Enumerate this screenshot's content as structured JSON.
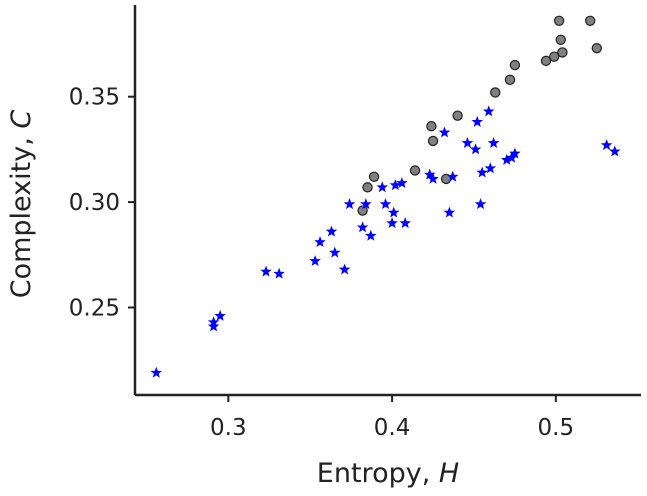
{
  "chart_data": {
    "type": "scatter",
    "xlabel": "Entropy, ",
    "xlabel_var": "H",
    "ylabel": "Complexity, ",
    "ylabel_var": "C",
    "xlim": [
      0.243,
      0.552
    ],
    "ylim": [
      0.2085,
      0.3935
    ],
    "xticks": [
      0.3,
      0.4,
      0.5
    ],
    "xtick_labels": [
      "0.3",
      "0.4",
      "0.5"
    ],
    "yticks": [
      0.25,
      0.3,
      0.35
    ],
    "ytick_labels": [
      "0.25",
      "0.30",
      "0.35"
    ],
    "grid": false,
    "series": [
      {
        "marker": "circle",
        "color": "#808080",
        "edge_color": "#222222",
        "points": [
          [
            0.382,
            0.296
          ],
          [
            0.385,
            0.307
          ],
          [
            0.389,
            0.312
          ],
          [
            0.414,
            0.315
          ],
          [
            0.424,
            0.336
          ],
          [
            0.425,
            0.329
          ],
          [
            0.433,
            0.311
          ],
          [
            0.44,
            0.341
          ],
          [
            0.463,
            0.352
          ],
          [
            0.472,
            0.358
          ],
          [
            0.475,
            0.365
          ],
          [
            0.494,
            0.367
          ],
          [
            0.499,
            0.369
          ],
          [
            0.502,
            0.386
          ],
          [
            0.503,
            0.377
          ],
          [
            0.504,
            0.371
          ],
          [
            0.521,
            0.386
          ],
          [
            0.525,
            0.373
          ]
        ]
      },
      {
        "marker": "star",
        "color": "#0000ff",
        "points": [
          [
            0.256,
            0.219
          ],
          [
            0.291,
            0.243
          ],
          [
            0.291,
            0.241
          ],
          [
            0.295,
            0.246
          ],
          [
            0.323,
            0.267
          ],
          [
            0.331,
            0.266
          ],
          [
            0.353,
            0.272
          ],
          [
            0.356,
            0.281
          ],
          [
            0.363,
            0.286
          ],
          [
            0.365,
            0.276
          ],
          [
            0.371,
            0.268
          ],
          [
            0.374,
            0.299
          ],
          [
            0.382,
            0.288
          ],
          [
            0.384,
            0.299
          ],
          [
            0.387,
            0.284
          ],
          [
            0.394,
            0.307
          ],
          [
            0.396,
            0.299
          ],
          [
            0.4,
            0.29
          ],
          [
            0.401,
            0.295
          ],
          [
            0.402,
            0.308
          ],
          [
            0.406,
            0.309
          ],
          [
            0.408,
            0.29
          ],
          [
            0.423,
            0.313
          ],
          [
            0.425,
            0.311
          ],
          [
            0.432,
            0.333
          ],
          [
            0.435,
            0.295
          ],
          [
            0.437,
            0.312
          ],
          [
            0.446,
            0.328
          ],
          [
            0.451,
            0.325
          ],
          [
            0.452,
            0.338
          ],
          [
            0.454,
            0.299
          ],
          [
            0.455,
            0.314
          ],
          [
            0.459,
            0.343
          ],
          [
            0.46,
            0.316
          ],
          [
            0.462,
            0.328
          ],
          [
            0.47,
            0.32
          ],
          [
            0.473,
            0.321
          ],
          [
            0.475,
            0.323
          ],
          [
            0.531,
            0.327
          ],
          [
            0.536,
            0.324
          ]
        ]
      }
    ]
  }
}
